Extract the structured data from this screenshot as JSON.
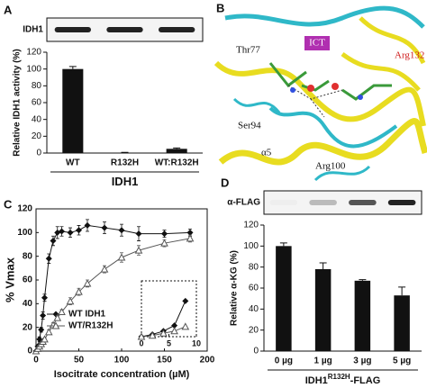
{
  "chart_data": [
    {
      "type": "bar",
      "letter": "A",
      "blot_label": "IDH1",
      "ylabel": "Relative IDH1 activity (%)",
      "xlabel": "IDH1",
      "categories": [
        "WT",
        "R132H",
        "WT:R132H"
      ],
      "values": [
        100,
        0.5,
        5
      ],
      "errors": [
        3,
        0.3,
        1
      ],
      "color": "#111111",
      "ylim": [
        0,
        120
      ],
      "yticks": [
        0,
        20,
        40,
        60,
        80,
        100,
        120
      ]
    },
    {
      "type": "line",
      "letter": "C",
      "xlabel": "Isocitrate concentration (µM)",
      "ylabel": "% Vmax",
      "xlim": [
        0,
        200
      ],
      "xticks": [
        0,
        50,
        100,
        150,
        200
      ],
      "ylim": [
        0,
        120
      ],
      "yticks": [
        0,
        20,
        40,
        60,
        80,
        100,
        120
      ],
      "legend": "center-left",
      "series": [
        {
          "name": "WT IDH1",
          "color": "#111111",
          "marker": "diamond",
          "x": [
            0,
            2,
            4,
            6,
            8,
            10,
            15,
            20,
            25,
            30,
            40,
            50,
            60,
            80,
            100,
            120,
            150,
            180
          ],
          "values": [
            0,
            4,
            10,
            18,
            30,
            45,
            78,
            93,
            100,
            101,
            100,
            102,
            106,
            104,
            102,
            99,
            99,
            100
          ],
          "errors": [
            0,
            1,
            2,
            2,
            3,
            3,
            4,
            4,
            5,
            4,
            4,
            4,
            5,
            5,
            5,
            6,
            3,
            3
          ]
        },
        {
          "name": "WT/R132H",
          "color": "#555555",
          "marker": "triangle-open",
          "x": [
            0,
            2,
            4,
            6,
            8,
            10,
            15,
            20,
            25,
            30,
            40,
            50,
            60,
            80,
            100,
            120,
            150,
            180
          ],
          "values": [
            0,
            2,
            4,
            6,
            8,
            10,
            16,
            22,
            28,
            33,
            42,
            50,
            57,
            69,
            79,
            85,
            91,
            95
          ],
          "errors": [
            0,
            1,
            1,
            1,
            1,
            1,
            2,
            2,
            2,
            2,
            3,
            3,
            3,
            3,
            4,
            4,
            3,
            3
          ]
        }
      ]
    },
    {
      "type": "line",
      "inset": true,
      "xlim": [
        0,
        10
      ],
      "xticks": [
        0,
        5,
        10
      ],
      "ylim": [
        0,
        50
      ],
      "series": [
        {
          "color": "#111111",
          "marker": "diamond",
          "x": [
            0,
            2,
            4,
            6,
            8
          ],
          "values": [
            0,
            2,
            5,
            10,
            32
          ]
        },
        {
          "color": "#555555",
          "marker": "triangle-open",
          "x": [
            0,
            2,
            4,
            6,
            8
          ],
          "values": [
            0,
            1,
            3,
            5,
            9
          ]
        }
      ]
    },
    {
      "type": "bar",
      "letter": "D",
      "blot_label": "α-FLAG",
      "ylabel": "Relative α-KG (%)",
      "xlabel": "IDH1",
      "xlabel_superscript": "R132H",
      "xlabel_suffix": "-FLAG",
      "categories": [
        "0 µg",
        "1 µg",
        "3 µg",
        "5 µg"
      ],
      "values": [
        100,
        78,
        67,
        53
      ],
      "errors": [
        3,
        6,
        1,
        8
      ],
      "color": "#111111",
      "ylim": [
        0,
        120
      ],
      "yticks": [
        0,
        20,
        40,
        60,
        80,
        100,
        120
      ]
    }
  ],
  "structure": {
    "letter": "B",
    "labels": [
      "Thr77",
      "ICT",
      "Arg132",
      "Ser94",
      "α5",
      "Arg100"
    ]
  }
}
